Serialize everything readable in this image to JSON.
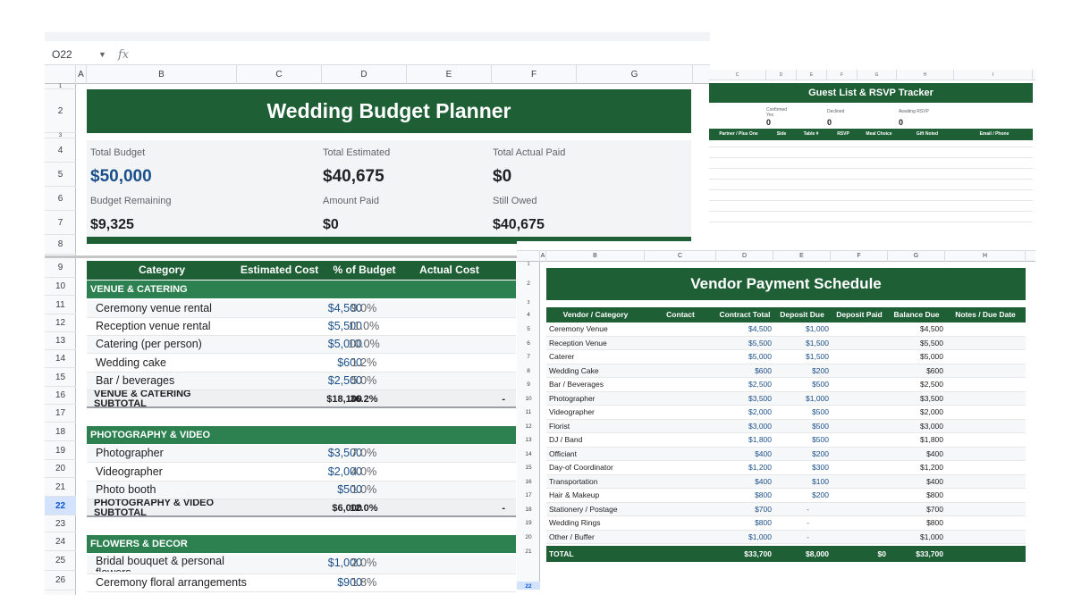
{
  "main": {
    "name_box": "O22",
    "fx": "fx",
    "columns": [
      "A",
      "B",
      "C",
      "D",
      "E",
      "F",
      "G"
    ],
    "rows": [
      "1",
      "2",
      "3",
      "4",
      "5",
      "6",
      "7",
      "8",
      "9",
      "10",
      "11",
      "12",
      "13",
      "14",
      "15",
      "16",
      "17",
      "18",
      "19",
      "20",
      "21",
      "22",
      "23",
      "24",
      "25",
      "26"
    ],
    "selected_row": "22",
    "title": "Wedding Budget Planner",
    "kpis": {
      "total_budget_label": "Total Budget",
      "total_budget": "$50,000",
      "total_estimated_label": "Total Estimated",
      "total_estimated": "$40,675",
      "total_actual_label": "Total Actual Paid",
      "total_actual": "$0",
      "remaining_label": "Budget Remaining",
      "remaining": "$9,325",
      "amount_paid_label": "Amount Paid",
      "amount_paid": "$0",
      "still_owed_label": "Still Owed",
      "still_owed": "$40,675"
    },
    "table_header": {
      "category": "Category",
      "estimated": "Estimated Cost",
      "pct": "% of Budget",
      "actual": "Actual Cost"
    },
    "sections": {
      "venue": {
        "title": "VENUE & CATERING",
        "items": [
          {
            "name": "Ceremony venue rental",
            "est": "$4,500",
            "pct": "9.0%"
          },
          {
            "name": "Reception venue rental",
            "est": "$5,500",
            "pct": "11.0%"
          },
          {
            "name": "Catering (per person)",
            "est": "$5,000",
            "pct": "10.0%"
          },
          {
            "name": "Wedding cake",
            "est": "$600",
            "pct": "1.2%"
          },
          {
            "name": "Bar / beverages",
            "est": "$2,500",
            "pct": "5.0%"
          }
        ],
        "subtotal": {
          "name": "VENUE & CATERING SUBTOTAL",
          "est": "$18,100",
          "pct": "36.2%",
          "actual": "-"
        }
      },
      "photo": {
        "title": "PHOTOGRAPHY & VIDEO",
        "items": [
          {
            "name": "Photographer",
            "est": "$3,500",
            "pct": "7.0%"
          },
          {
            "name": "Videographer",
            "est": "$2,000",
            "pct": "4.0%"
          },
          {
            "name": "Photo booth",
            "est": "$500",
            "pct": "1.0%"
          }
        ],
        "subtotal": {
          "name": "PHOTOGRAPHY & VIDEO SUBTOTAL",
          "est": "$6,000",
          "pct": "12.0%",
          "actual": "-"
        }
      },
      "flowers": {
        "title": "FLOWERS & DECOR",
        "items": [
          {
            "name": "Bridal bouquet & personal flowers",
            "est": "$1,000",
            "pct": "2.0%"
          },
          {
            "name": "Ceremony floral arrangements",
            "est": "$900",
            "pct": "1.8%"
          }
        ]
      }
    }
  },
  "guest": {
    "columns": [
      "C",
      "D",
      "E",
      "F",
      "G",
      "H",
      "I"
    ],
    "title": "Guest List & RSVP Tracker",
    "stats": {
      "confirmed_label": "Confirmed Yes",
      "confirmed": "0",
      "declined_label": "Declined",
      "declined": "0",
      "awaiting_label": "Awaiting RSVP",
      "awaiting": "0"
    },
    "headers": [
      "Partner / Plus One",
      "Side",
      "Table #",
      "RSVP",
      "Meal Choice",
      "Gift Noted",
      "Email / Phone"
    ]
  },
  "vendor": {
    "columns": [
      "A",
      "B",
      "C",
      "D",
      "E",
      "F",
      "G",
      "H"
    ],
    "rows": [
      "1",
      "2",
      "3",
      "4",
      "5",
      "6",
      "7",
      "8",
      "9",
      "10",
      "11",
      "12",
      "13",
      "14",
      "15",
      "16",
      "17",
      "18",
      "19",
      "20",
      "21",
      "22",
      "23"
    ],
    "selected_row": "22",
    "title": "Vendor Payment Schedule",
    "headers": {
      "vendor": "Vendor / Category",
      "contact": "Contact",
      "contract": "Contract Total",
      "deposit_due": "Deposit Due",
      "deposit_paid": "Deposit Paid",
      "balance": "Balance Due",
      "notes": "Notes / Due Date"
    },
    "items": [
      {
        "vendor": "Ceremony Venue",
        "contract": "$4,500",
        "deposit": "$1,000",
        "balance": "$4,500"
      },
      {
        "vendor": "Reception Venue",
        "contract": "$5,500",
        "deposit": "$1,500",
        "balance": "$5,500"
      },
      {
        "vendor": "Caterer",
        "contract": "$5,000",
        "deposit": "$1,500",
        "balance": "$5,000"
      },
      {
        "vendor": "Wedding Cake",
        "contract": "$600",
        "deposit": "$200",
        "balance": "$600"
      },
      {
        "vendor": "Bar / Beverages",
        "contract": "$2,500",
        "deposit": "$500",
        "balance": "$2,500"
      },
      {
        "vendor": "Photographer",
        "contract": "$3,500",
        "deposit": "$1,000",
        "balance": "$3,500"
      },
      {
        "vendor": "Videographer",
        "contract": "$2,000",
        "deposit": "$500",
        "balance": "$2,000"
      },
      {
        "vendor": "Florist",
        "contract": "$3,000",
        "deposit": "$500",
        "balance": "$3,000"
      },
      {
        "vendor": "DJ / Band",
        "contract": "$1,800",
        "deposit": "$500",
        "balance": "$1,800"
      },
      {
        "vendor": "Officiant",
        "contract": "$400",
        "deposit": "$200",
        "balance": "$400"
      },
      {
        "vendor": "Day-of Coordinator",
        "contract": "$1,200",
        "deposit": "$300",
        "balance": "$1,200"
      },
      {
        "vendor": "Transportation",
        "contract": "$400",
        "deposit": "$100",
        "balance": "$400"
      },
      {
        "vendor": "Hair & Makeup",
        "contract": "$800",
        "deposit": "$200",
        "balance": "$800"
      },
      {
        "vendor": "Stationery / Postage",
        "contract": "$700",
        "deposit": "-",
        "balance": "$700"
      },
      {
        "vendor": "Wedding Rings",
        "contract": "$800",
        "deposit": "-",
        "balance": "$800"
      },
      {
        "vendor": "Other / Buffer",
        "contract": "$1,000",
        "deposit": "-",
        "balance": "$1,000"
      }
    ],
    "total": {
      "label": "TOTAL",
      "contract": "$33,700",
      "deposit": "$8,000",
      "paid": "$0",
      "balance": "$33,700"
    }
  }
}
